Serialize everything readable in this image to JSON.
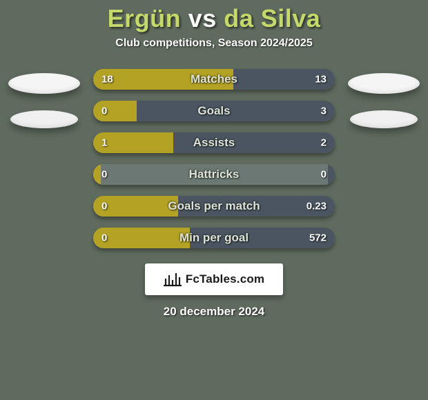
{
  "meta": {
    "title_player1": "Ergün",
    "title_vs": "vs",
    "title_player2": "da Silva",
    "title_color": "#c5d96a",
    "vs_color": "#ffffff",
    "subtitle": "Club competitions, Season 2024/2025",
    "subtitle_color": "#ffffff",
    "date": "20 december 2024",
    "background_color": "#5f6b5e",
    "text_value_color": "#ffffff",
    "label_color": "#dde4d6"
  },
  "series_colors": {
    "left": "#b3a224",
    "right": "#4a5561",
    "base": "#6b7873"
  },
  "bars": [
    {
      "label": "Matches",
      "left": "18",
      "right": "13",
      "left_pct": 58,
      "right_pct": 42
    },
    {
      "label": "Goals",
      "left": "0",
      "right": "3",
      "left_pct": 18,
      "right_pct": 82
    },
    {
      "label": "Assists",
      "left": "1",
      "right": "2",
      "left_pct": 33,
      "right_pct": 67
    },
    {
      "label": "Hattricks",
      "left": "0",
      "right": "0",
      "left_pct": 3,
      "right_pct": 3
    },
    {
      "label": "Goals per match",
      "left": "0",
      "right": "0.23",
      "left_pct": 35,
      "right_pct": 97
    },
    {
      "label": "Min per goal",
      "left": "0",
      "right": "572",
      "left_pct": 40,
      "right_pct": 92
    }
  ],
  "brand": {
    "text": "FcTables.com",
    "bg": "#ffffff",
    "text_color": "#1a1a1a",
    "icon_stroke": "#1a1a1a"
  },
  "portrait": {
    "fill": "#f5f5f5"
  }
}
